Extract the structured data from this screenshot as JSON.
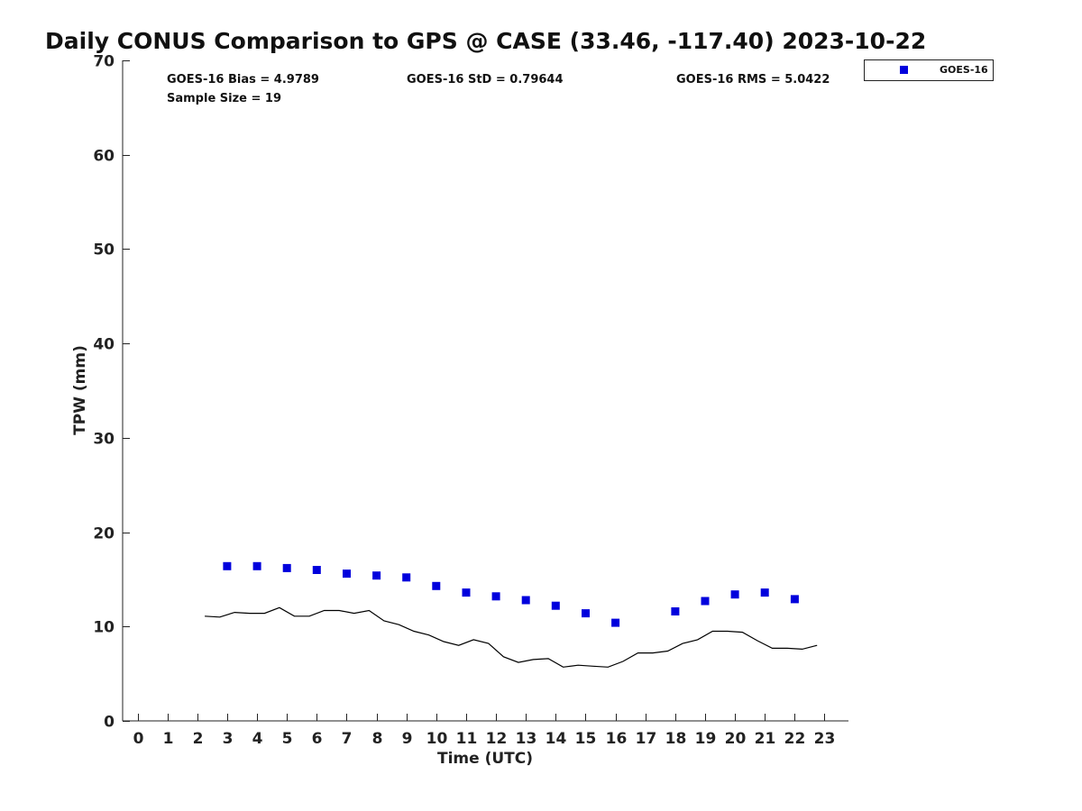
{
  "chart_data": {
    "type": "scatter",
    "title": "Daily CONUS Comparison to GPS @ CASE (33.46, -117.40) 2023-10-22",
    "xlabel": "Time (UTC)",
    "ylabel": "TPW (mm)",
    "xlim": [
      -0.5,
      23.8
    ],
    "ylim": [
      0,
      70
    ],
    "x_ticks": [
      0,
      1,
      2,
      3,
      4,
      5,
      6,
      7,
      8,
      9,
      10,
      11,
      12,
      13,
      14,
      15,
      16,
      17,
      18,
      19,
      20,
      21,
      22,
      23
    ],
    "y_ticks": [
      0,
      10,
      20,
      30,
      40,
      50,
      60,
      70
    ],
    "grid": false,
    "legend_position": "top-right outside",
    "stats": {
      "bias": "GOES-16 Bias = 4.9789",
      "std": "GOES-16 StD = 0.79644",
      "rms": "GOES-16 RMS = 5.0422",
      "sample": "Sample Size = 19"
    },
    "series": [
      {
        "name": "GOES-16",
        "kind": "markers",
        "color": "#0000dd",
        "marker": "square",
        "x": [
          3,
          4,
          5,
          6,
          7,
          8,
          9,
          10,
          11,
          12,
          13,
          14,
          15,
          16,
          18,
          19,
          20,
          21,
          22
        ],
        "y": [
          16.4,
          16.4,
          16.2,
          16.0,
          15.6,
          15.4,
          15.2,
          14.3,
          13.6,
          13.2,
          12.8,
          12.2,
          11.4,
          10.4,
          11.6,
          12.7,
          13.4,
          13.6,
          12.9
        ]
      },
      {
        "kind": "line",
        "color": "#000000",
        "x": [
          2.25,
          2.75,
          3.25,
          3.75,
          4.25,
          4.75,
          5.25,
          5.75,
          6.25,
          6.75,
          7.25,
          7.75,
          8.25,
          8.75,
          9.25,
          9.75,
          10.25,
          10.75,
          11.25,
          11.75,
          12.25,
          12.75,
          13.25,
          13.75,
          14.25,
          14.75,
          15.25,
          15.75,
          16.25,
          16.75,
          17.25,
          17.75,
          18.25,
          18.75,
          19.25,
          19.75,
          20.25,
          20.75,
          21.25,
          21.75,
          22.25,
          22.75
        ],
        "y": [
          11.1,
          11.0,
          11.5,
          11.4,
          11.4,
          12.0,
          11.1,
          11.1,
          11.7,
          11.7,
          11.4,
          11.7,
          10.6,
          10.2,
          9.5,
          9.1,
          8.4,
          8.0,
          8.6,
          8.2,
          6.8,
          6.2,
          6.5,
          6.6,
          5.7,
          5.9,
          5.8,
          5.7,
          6.3,
          7.2,
          7.2,
          7.4,
          8.2,
          8.6,
          9.5,
          9.5,
          9.4,
          8.5,
          7.7,
          7.7,
          7.6,
          8.0
        ]
      }
    ]
  }
}
